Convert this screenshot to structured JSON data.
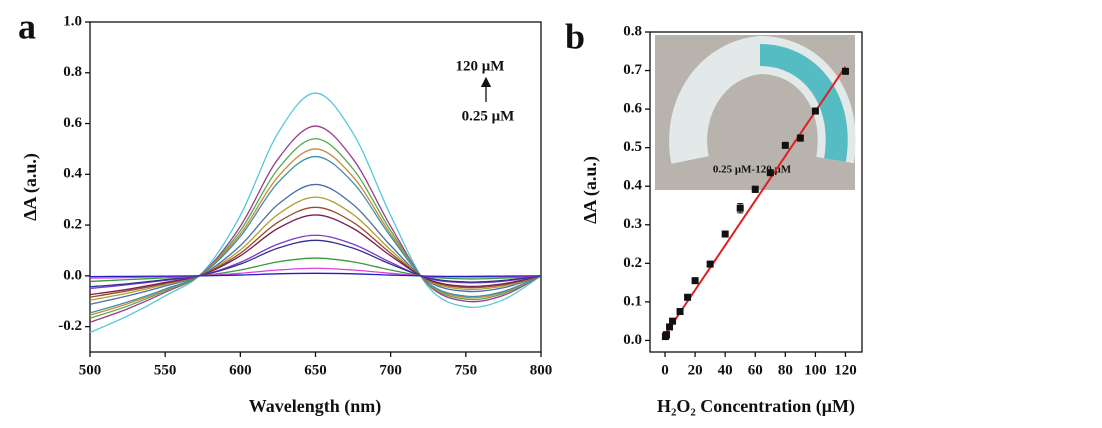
{
  "chart_data": [
    {
      "type": "line",
      "panel": "a",
      "x_label": "Wavelength (nm)",
      "y_label": "ΔA (a.u.)",
      "x": [
        500,
        525,
        550,
        575,
        600,
        625,
        650,
        675,
        700,
        725,
        750,
        775,
        800
      ],
      "series": [
        {
          "color": "#55c8d8",
          "values": [
            -0.223,
            -0.158,
            -0.079,
            0.014,
            0.238,
            0.562,
            0.72,
            0.562,
            0.238,
            -0.043,
            -0.122,
            -0.094,
            0
          ]
        },
        {
          "color": "#9b3b8f",
          "values": [
            -0.183,
            -0.13,
            -0.065,
            0.012,
            0.195,
            0.46,
            0.59,
            0.46,
            0.195,
            -0.035,
            -0.1,
            -0.077,
            0
          ]
        },
        {
          "color": "#5aa84a",
          "values": [
            -0.167,
            -0.119,
            -0.059,
            0.011,
            0.178,
            0.421,
            0.54,
            0.421,
            0.178,
            -0.032,
            -0.092,
            -0.07,
            0
          ]
        },
        {
          "color": "#c88a3a",
          "values": [
            -0.155,
            -0.11,
            -0.055,
            0.01,
            0.165,
            0.39,
            0.5,
            0.39,
            0.165,
            -0.03,
            -0.085,
            -0.065,
            0
          ]
        },
        {
          "color": "#3e8fa8",
          "values": [
            -0.146,
            -0.103,
            -0.052,
            0.009,
            0.155,
            0.367,
            0.47,
            0.367,
            0.155,
            -0.028,
            -0.08,
            -0.061,
            0
          ]
        },
        {
          "color": "#4a6fa8",
          "values": [
            -0.112,
            -0.079,
            -0.04,
            0.007,
            0.119,
            0.281,
            0.36,
            0.281,
            0.119,
            -0.022,
            -0.061,
            -0.047,
            0
          ]
        },
        {
          "color": "#b0a030",
          "values": [
            -0.096,
            -0.068,
            -0.034,
            0.006,
            0.102,
            0.242,
            0.31,
            0.242,
            0.102,
            -0.019,
            -0.053,
            -0.04,
            0
          ]
        },
        {
          "color": "#9a4a2a",
          "values": [
            -0.084,
            -0.059,
            -0.03,
            0.005,
            0.089,
            0.211,
            0.27,
            0.211,
            0.089,
            -0.016,
            -0.046,
            -0.035,
            0
          ]
        },
        {
          "color": "#7a2050",
          "values": [
            -0.074,
            -0.053,
            -0.026,
            0.005,
            0.079,
            0.187,
            0.24,
            0.187,
            0.079,
            -0.014,
            -0.041,
            -0.031,
            0
          ]
        },
        {
          "color": "#7a3ad0",
          "values": [
            -0.05,
            -0.035,
            -0.018,
            0.003,
            0.053,
            0.125,
            0.16,
            0.125,
            0.053,
            -0.01,
            -0.027,
            -0.021,
            0
          ]
        },
        {
          "color": "#303090",
          "values": [
            -0.043,
            -0.031,
            -0.015,
            0.003,
            0.046,
            0.109,
            0.14,
            0.109,
            0.046,
            -0.008,
            -0.024,
            -0.018,
            0
          ]
        },
        {
          "color": "#3a9a3a",
          "values": [
            -0.022,
            -0.015,
            -0.008,
            0.001,
            0.023,
            0.055,
            0.07,
            0.055,
            0.023,
            -0.004,
            -0.012,
            -0.009,
            0
          ]
        },
        {
          "color": "#e040e0",
          "values": [
            -0.009,
            -0.007,
            -0.003,
            0.001,
            0.01,
            0.023,
            0.03,
            0.023,
            0.01,
            -0.002,
            -0.005,
            -0.004,
            0
          ]
        },
        {
          "color": "#2020c0",
          "values": [
            -0.003,
            -0.002,
            -0.001,
            0,
            0.003,
            0.008,
            0.01,
            0.008,
            0.003,
            -0.001,
            -0.002,
            -0.001,
            0
          ]
        }
      ],
      "xlim": [
        500,
        800
      ],
      "xticks": [
        500,
        550,
        600,
        650,
        700,
        750,
        800
      ],
      "ylim": [
        -0.3,
        1.0
      ],
      "yticks": [
        -0.2,
        {
          "value": 0,
          "label": "0.0"
        },
        0.2,
        0.4,
        0.6,
        0.8,
        {
          "value": 1,
          "label": "1.0"
        }
      ],
      "annotations": {
        "top": "120 μM",
        "bottom": "0.25 μM"
      }
    },
    {
      "type": "scatter",
      "panel": "b",
      "x_label": "H₂O₂ Concentration (μM)",
      "y_label": "ΔA (a.u.)",
      "x": [
        0.25,
        0.5,
        1,
        3,
        5,
        10,
        15,
        20,
        30,
        40,
        50,
        60,
        70,
        80,
        90,
        100,
        120
      ],
      "values": [
        0.01,
        0.012,
        0.015,
        0.035,
        0.05,
        0.075,
        0.112,
        0.155,
        0.198,
        0.276,
        0.343,
        0.392,
        0.435,
        0.506,
        0.525,
        0.595,
        0.698
      ],
      "errors": [
        0.004,
        0.004,
        0.004,
        0.004,
        0.004,
        0.004,
        0.004,
        0.005,
        0.004,
        0.004,
        0.012,
        0.008,
        0.005,
        0.005,
        0.008,
        0.004,
        0.004
      ],
      "color": "#111111",
      "fit": {
        "color": "#e02020",
        "x": [
          0,
          120
        ],
        "values": [
          0.015,
          0.71
        ]
      },
      "xlim": [
        -10,
        131
      ],
      "xticks": [
        0,
        20,
        40,
        60,
        80,
        100,
        120
      ],
      "ylim": [
        -0.03,
        0.8
      ],
      "yticks": [
        {
          "value": 0,
          "label": "0.0"
        },
        0.1,
        0.2,
        0.3,
        0.4,
        0.5,
        0.6,
        0.7,
        0.8
      ],
      "inset_label": "0.25 μM-120 μM"
    }
  ]
}
